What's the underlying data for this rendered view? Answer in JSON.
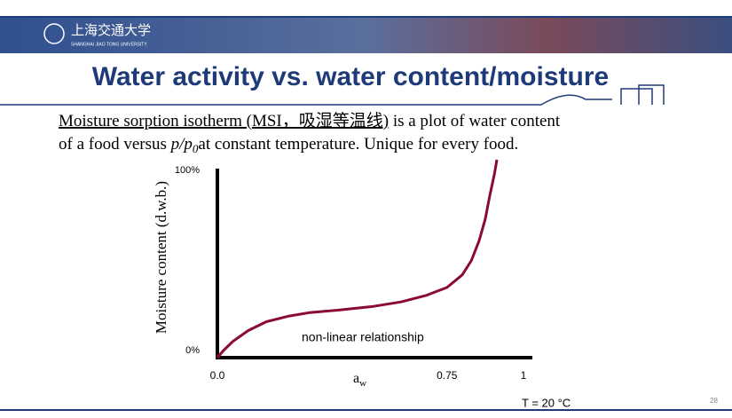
{
  "header": {
    "school": "上海交通大学",
    "school_en": "SHANGHAI JIAO TONG UNIVERSITY"
  },
  "title": "Water activity vs. water content/moisture",
  "paragraph": {
    "term": "Moisture sorption isotherm (MSI，吸湿等温线)",
    "line1_rest": " is a plot of water content",
    "line2_start": "of a food versus ",
    "ratio": "p/p",
    "ratio_sub": "0",
    "line2_end": "at constant temperature. Unique for every food."
  },
  "chart_data": {
    "type": "line",
    "ylabel": "Moisture content (d.w.b.)",
    "xlabel": {
      "base": "a",
      "sub": "w"
    },
    "annotation": "non-linear relationship",
    "x": [
      0,
      0.02,
      0.05,
      0.1,
      0.16,
      0.23,
      0.3,
      0.4,
      0.51,
      0.6,
      0.68,
      0.75,
      0.8,
      0.83,
      0.855,
      0.875,
      0.89,
      0.905,
      0.913
    ],
    "values": [
      0,
      4,
      9,
      15,
      20,
      23,
      25,
      26.5,
      28.5,
      31,
      34.5,
      39,
      46,
      54,
      65,
      77,
      90,
      102,
      110
    ],
    "color": "#8b0a32",
    "xlim": [
      0,
      1
    ],
    "ylim": [
      0,
      110
    ],
    "xticks": [
      {
        "value": 0,
        "label": "0.0"
      },
      0.75,
      1
    ],
    "yticks": [
      {
        "value": 0,
        "label": "0%"
      },
      {
        "value": 100,
        "label": "100%"
      }
    ],
    "grid": false
  },
  "footer": {
    "note": "T = 20 °C",
    "page": "28"
  }
}
